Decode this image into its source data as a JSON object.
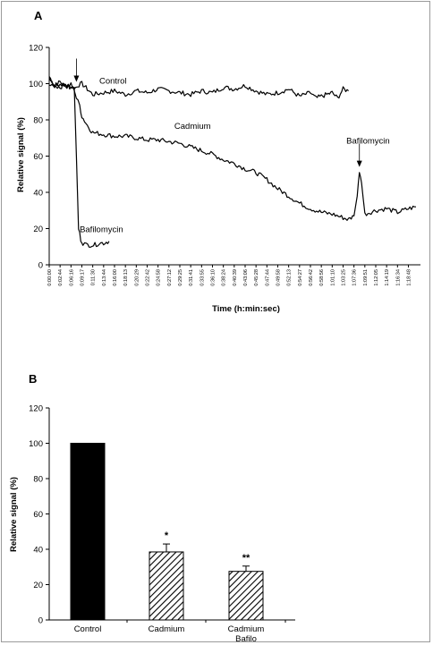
{
  "chart_data": [
    {
      "panel": "A",
      "type": "line",
      "xlabel": "Time (h:min:sec)",
      "ylabel": "Relative signal (%)",
      "ylim": [
        0,
        120
      ],
      "yticks": [
        0,
        20,
        40,
        60,
        80,
        100,
        120
      ],
      "xticks": [
        "0:00:00",
        "0:02:44",
        "0:06:16",
        "0:09:17",
        "0:11:30",
        "0:13:44",
        "0:16:00",
        "0:18:13",
        "0:20:29",
        "0:22:42",
        "0:24:58",
        "0:27:12",
        "0:29:25",
        "0:31:41",
        "0:33:55",
        "0:36:10",
        "0:38:24",
        "0:40:39",
        "0:43:06",
        "0:45:28",
        "0:47:44",
        "0:49:58",
        "0:52:13",
        "0:54:27",
        "0:56:42",
        "0:58:56",
        "1:01:10",
        "1:03:25",
        "1:07:36",
        "1:09:51",
        "1:12:05",
        "1:14:19",
        "1:16:34",
        "1:18:48"
      ],
      "x_index_range": [
        0,
        33.7
      ],
      "series": [
        {
          "name": "Control",
          "x": [
            0,
            0.5,
            1,
            1.5,
            2,
            2.3,
            2.6,
            3,
            3.5,
            4,
            5,
            6,
            7,
            8,
            9,
            10,
            11,
            12,
            13,
            14,
            15,
            16,
            17,
            18,
            19,
            20,
            21,
            22,
            23,
            24,
            24.5,
            25,
            25.5,
            26,
            26.5,
            27,
            27.5
          ],
          "y": [
            104,
            99,
            101,
            98,
            100,
            97,
            99,
            100,
            97,
            94,
            95,
            96,
            94,
            96,
            95,
            97,
            96,
            95,
            94,
            96,
            95,
            98,
            97,
            99,
            96,
            94,
            95,
            97,
            93,
            95,
            92,
            93,
            94,
            95,
            92,
            97,
            96
          ]
        },
        {
          "name": "Cadmium",
          "x": [
            0,
            0.5,
            1,
            1.5,
            2,
            2.3,
            2.5,
            2.8,
            3,
            3.5,
            4,
            5,
            6,
            7,
            8,
            9,
            10,
            11,
            12,
            13,
            14,
            15,
            16,
            17,
            18,
            19,
            20,
            21,
            22,
            23,
            24,
            25,
            26,
            27,
            27.5,
            28,
            28.3,
            28.5,
            28.7,
            29,
            30,
            31,
            32,
            33,
            33.7
          ],
          "y": [
            100,
            99,
            100,
            99,
            98,
            97,
            92,
            88,
            82,
            77,
            73,
            72,
            71,
            71,
            70,
            69,
            69,
            68,
            67,
            65,
            63,
            61,
            58,
            56,
            53,
            51,
            47,
            42,
            38,
            34,
            31,
            29,
            28,
            26,
            25,
            27,
            38,
            52,
            45,
            28,
            30,
            31,
            29,
            31,
            32
          ]
        },
        {
          "name": "Bafilomycin",
          "x": [
            0,
            0.5,
            1,
            1.5,
            2,
            2.3,
            2.5,
            2.7,
            2.9,
            3.1,
            3.4,
            3.8,
            4.2,
            4.6,
            5,
            5.5
          ],
          "y": [
            103,
            99,
            98,
            100,
            97,
            98,
            60,
            20,
            14,
            12,
            11,
            11,
            11,
            12,
            12,
            13
          ]
        }
      ],
      "annotations": [
        {
          "text": "Control",
          "x": 4.6,
          "y": 100
        },
        {
          "text": "Cadmium",
          "x": 11.5,
          "y": 75
        },
        {
          "text": "Bafilomycin",
          "x": 2.8,
          "y": 18
        },
        {
          "text": "Bafilomycin",
          "x": 27.3,
          "y": 67
        }
      ],
      "arrows": [
        {
          "x": 2.5,
          "y": 101,
          "note": "treatment added"
        },
        {
          "x": 28.5,
          "y": 54,
          "note": "bafilomycin added"
        }
      ],
      "grid": false
    },
    {
      "panel": "B",
      "type": "bar",
      "categories": [
        "Control",
        "Cadmium",
        "Cadmium\nBafilo"
      ],
      "values": [
        100,
        38.5,
        27.5
      ],
      "errors": [
        0,
        4.5,
        3
      ],
      "significance": [
        "",
        "*",
        "**"
      ],
      "fills": [
        "solid",
        "hatch",
        "hatch"
      ],
      "xlabel": "",
      "ylabel": "Relative signal (%)",
      "ylim": [
        0,
        120
      ],
      "yticks": [
        0,
        20,
        40,
        60,
        80,
        100,
        120
      ],
      "grid": false
    }
  ],
  "panel_letters": [
    "A",
    "B"
  ],
  "category_labels": {
    "control": "Control",
    "cadmium": "Cadmium",
    "cadbafilo_1": "Cadmium",
    "cadbafilo_2": "Bafilo"
  },
  "colors": {
    "line": "#000000",
    "bar": "#000000",
    "frame": "#9a9a9a"
  }
}
